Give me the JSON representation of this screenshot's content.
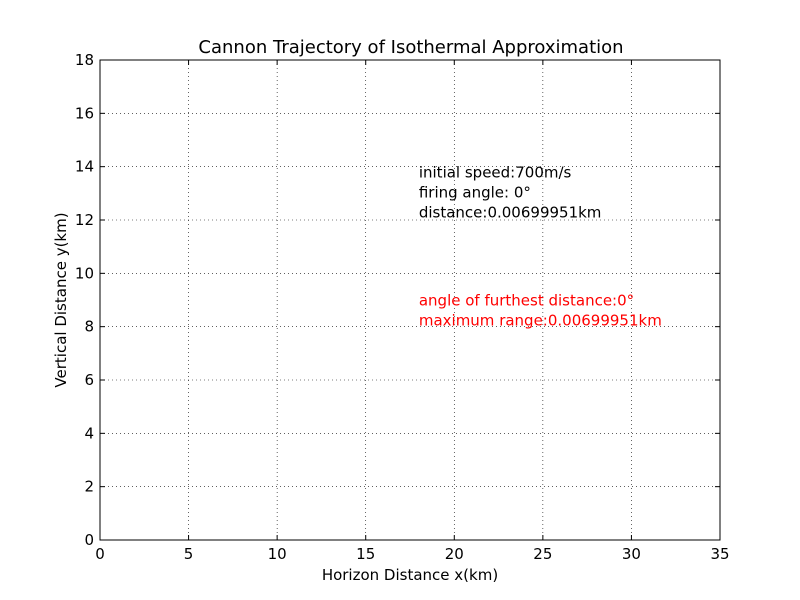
{
  "chart_data": {
    "type": "line",
    "title": "Cannon Trajectory of Isothermal Approximation",
    "xlabel": "Horizon Distance x(km)",
    "ylabel": "Vertical Distance y(km)",
    "xlim": [
      0,
      35
    ],
    "ylim": [
      0,
      18
    ],
    "x_ticks": [
      0,
      5,
      10,
      15,
      20,
      25,
      30,
      35
    ],
    "y_ticks": [
      0,
      2,
      4,
      6,
      8,
      10,
      12,
      14,
      16,
      18
    ],
    "grid": true,
    "series": [
      {
        "x": [
          0,
          0.00699951
        ],
        "y": [
          0,
          0
        ],
        "color": "#0000ff"
      }
    ],
    "annotations": [
      {
        "text": "initial speed:700m/s",
        "x": 18,
        "y": 13.6,
        "color": "#000000"
      },
      {
        "text": "firing angle: 0°",
        "x": 18,
        "y": 12.85,
        "color": "#000000"
      },
      {
        "text": "distance:0.00699951km",
        "x": 18,
        "y": 12.1,
        "color": "#000000"
      },
      {
        "text": "angle of furthest distance:0°",
        "x": 18,
        "y": 8.8,
        "color": "#ff0000"
      },
      {
        "text": "maximum range:0.00699951km",
        "x": 18,
        "y": 8.05,
        "color": "#ff0000"
      }
    ]
  }
}
